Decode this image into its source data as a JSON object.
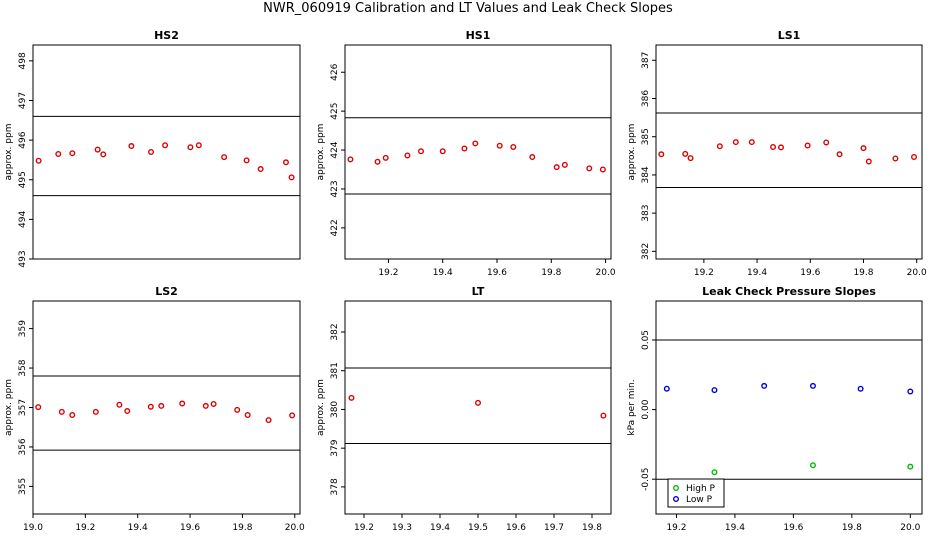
{
  "title": "NWR_060919  Calibration and LT Values and Leak Check Slopes",
  "chart_data": [
    {
      "type": "scatter",
      "title": "HS2",
      "xlabel": "",
      "ylabel": "approx. ppm",
      "xlim": [
        19.07,
        20.02
      ],
      "ylim": [
        493.0,
        498.4
      ],
      "xticks": [],
      "yticks": [
        "493",
        "494",
        "495",
        "496",
        "497",
        "498"
      ],
      "hlines": [
        496.6,
        494.6
      ],
      "color": "#dd0000",
      "x": [
        19.09,
        19.16,
        19.21,
        19.3,
        19.32,
        19.42,
        19.49,
        19.54,
        19.63,
        19.66,
        19.75,
        19.83,
        19.88,
        19.97,
        19.99
      ],
      "y": [
        495.48,
        495.65,
        495.67,
        495.76,
        495.64,
        495.85,
        495.7,
        495.87,
        495.82,
        495.87,
        495.57,
        495.49,
        495.27,
        495.44,
        495.06
      ]
    },
    {
      "type": "scatter",
      "title": "HS1",
      "xlabel": "",
      "ylabel": "approx. ppm",
      "xlim": [
        19.04,
        20.02
      ],
      "ylim": [
        421.2,
        426.7
      ],
      "xticks": [
        "19.2",
        "19.4",
        "19.6",
        "19.8",
        "20.0"
      ],
      "yticks": [
        "422",
        "423",
        "424",
        "425",
        "426"
      ],
      "hlines": [
        424.83,
        422.87
      ],
      "color": "#dd0000",
      "x": [
        19.06,
        19.16,
        19.19,
        19.27,
        19.32,
        19.4,
        19.48,
        19.52,
        19.61,
        19.66,
        19.73,
        19.82,
        19.85,
        19.94,
        19.99
      ],
      "y": [
        423.76,
        423.7,
        423.8,
        423.86,
        423.97,
        423.97,
        424.04,
        424.17,
        424.11,
        424.08,
        423.82,
        423.56,
        423.62,
        423.53,
        423.5
      ]
    },
    {
      "type": "scatter",
      "title": "LS1",
      "xlabel": "",
      "ylabel": "approx. ppm",
      "xlim": [
        19.02,
        20.02
      ],
      "ylim": [
        381.8,
        387.4
      ],
      "xticks": [
        "19.2",
        "19.4",
        "19.6",
        "19.8",
        "20.0"
      ],
      "yticks": [
        "382",
        "383",
        "384",
        "385",
        "386",
        "387"
      ],
      "hlines": [
        385.62,
        383.67
      ],
      "color": "#dd0000",
      "x": [
        19.04,
        19.13,
        19.15,
        19.26,
        19.32,
        19.38,
        19.46,
        19.49,
        19.59,
        19.66,
        19.71,
        19.8,
        19.82,
        19.92,
        19.99
      ],
      "y": [
        384.54,
        384.55,
        384.44,
        384.75,
        384.86,
        384.86,
        384.73,
        384.72,
        384.77,
        384.85,
        384.54,
        384.7,
        384.35,
        384.43,
        384.47
      ]
    },
    {
      "type": "scatter",
      "title": "LS2",
      "xlabel": "",
      "ylabel": "approx. ppm",
      "xlim": [
        19.0,
        20.02
      ],
      "ylim": [
        354.3,
        359.7
      ],
      "xticks": [
        "19.0",
        "19.2",
        "19.4",
        "19.6",
        "19.8",
        "20.0"
      ],
      "yticks": [
        "355",
        "356",
        "357",
        "358",
        "359"
      ],
      "hlines": [
        357.8,
        355.92
      ],
      "color": "#dd0000",
      "x": [
        19.02,
        19.11,
        19.15,
        19.24,
        19.33,
        19.36,
        19.45,
        19.49,
        19.57,
        19.66,
        19.69,
        19.78,
        19.82,
        19.9,
        19.99
      ],
      "y": [
        357.01,
        356.89,
        356.81,
        356.89,
        357.07,
        356.91,
        357.02,
        357.04,
        357.1,
        357.04,
        357.09,
        356.94,
        356.81,
        356.68,
        356.8
      ]
    },
    {
      "type": "scatter",
      "title": "LT",
      "xlabel": "",
      "ylabel": "approx. ppm",
      "xlim": [
        19.15,
        19.85
      ],
      "ylim": [
        377.3,
        382.8
      ],
      "xticks": [
        "19.2",
        "19.3",
        "19.4",
        "19.5",
        "19.6",
        "19.7",
        "19.8"
      ],
      "yticks": [
        "378",
        "379",
        "380",
        "381",
        "382"
      ],
      "hlines": [
        381.07,
        379.12
      ],
      "color": "#dd0000",
      "x": [
        19.167,
        19.5,
        19.83
      ],
      "y": [
        380.3,
        380.17,
        379.84
      ]
    },
    {
      "type": "scatter",
      "title": "Leak Check Pressure Slopes",
      "xlabel": "",
      "ylabel": "kPa per min.",
      "xlim": [
        19.13,
        20.04
      ],
      "ylim": [
        -0.075,
        0.078
      ],
      "xticks": [
        "19.2",
        "19.4",
        "19.6",
        "19.8",
        "20.0"
      ],
      "yticks": [
        "-0.05",
        "0.00",
        "0.05"
      ],
      "hlines": [
        0.05,
        -0.05
      ],
      "legend_position": "bottom-left",
      "series": [
        {
          "name": "High P",
          "color": "#00bb00",
          "x": [
            19.33,
            19.667,
            20.0
          ],
          "y": [
            -0.045,
            -0.04,
            -0.041
          ]
        },
        {
          "name": "Low P",
          "color": "#0000dd",
          "x": [
            19.167,
            19.33,
            19.5,
            19.667,
            19.83,
            20.0
          ],
          "y": [
            0.015,
            0.014,
            0.017,
            0.017,
            0.015,
            0.013
          ]
        }
      ]
    }
  ]
}
